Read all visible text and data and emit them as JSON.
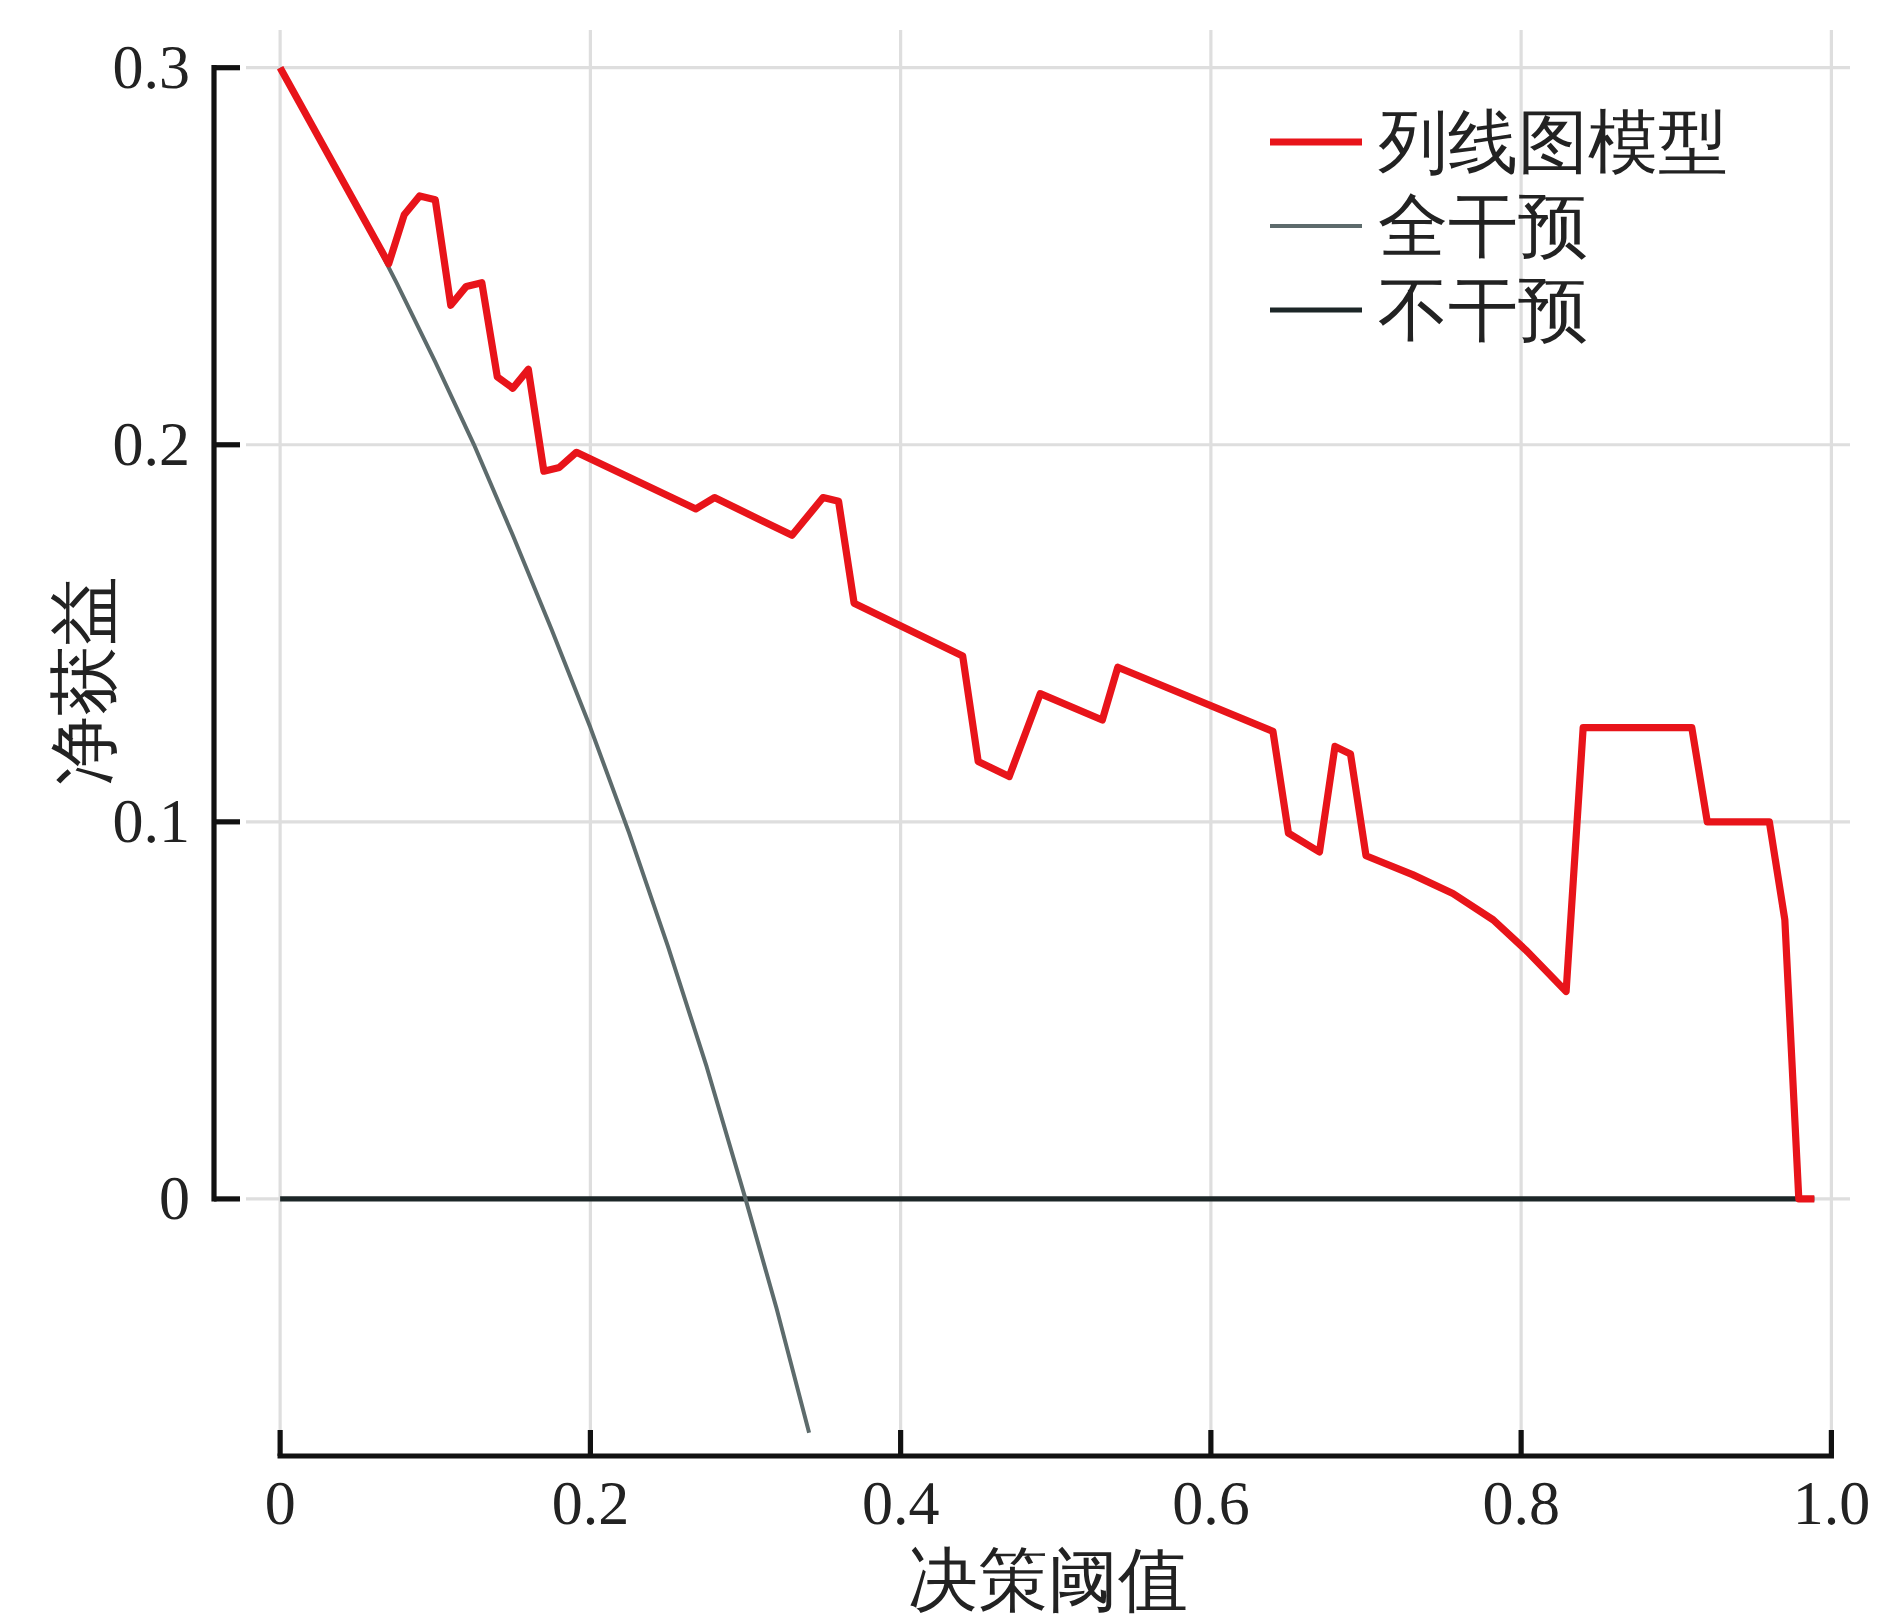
{
  "chart_data": {
    "type": "line",
    "xlabel": "决策阈值",
    "ylabel": "净获益",
    "xlim": [
      -0.022,
      1.012
    ],
    "ylim": [
      -0.065,
      0.31
    ],
    "xticks": [
      0,
      0.2,
      0.4,
      0.6,
      0.8,
      {
        "value": 1,
        "label": "1.0"
      }
    ],
    "yticks": [
      0,
      0.1,
      0.2,
      0.3
    ],
    "grid": true,
    "legend": "top right",
    "series": [
      {
        "name": "列线图模型",
        "color": "#e8141a",
        "x": [
          0,
          0.07,
          0.08,
          0.09,
          0.1,
          0.11,
          0.12,
          0.13,
          0.14,
          0.15,
          0.16,
          0.17,
          0.18,
          0.191,
          0.268,
          0.28,
          0.33,
          0.35,
          0.36,
          0.37,
          0.44,
          0.45,
          0.47,
          0.49,
          0.53,
          0.54,
          0.64,
          0.65,
          0.67,
          0.68,
          0.69,
          0.7,
          0.73,
          0.756,
          0.782,
          0.803,
          0.829,
          0.84,
          0.91,
          0.92,
          0.96,
          0.97,
          0.979,
          0.989
        ],
        "values": [
          0.3,
          0.248,
          0.261,
          0.266,
          0.265,
          0.237,
          0.242,
          0.243,
          0.218,
          0.215,
          0.22,
          0.193,
          0.194,
          0.198,
          0.183,
          0.186,
          0.176,
          0.186,
          0.185,
          0.158,
          0.144,
          0.116,
          0.112,
          0.134,
          0.127,
          0.141,
          0.124,
          0.097,
          0.092,
          0.12,
          0.118,
          0.091,
          0.086,
          0.081,
          0.074,
          0.066,
          0.055,
          0.125,
          0.125,
          0.1,
          0.1,
          0.074,
          0,
          0
        ]
      },
      {
        "name": "全干预",
        "color": "#5d6b6c",
        "x": [
          0,
          0.05,
          0.075,
          0.1,
          0.125,
          0.15,
          0.175,
          0.2,
          0.225,
          0.25,
          0.275,
          0.3,
          0.32,
          0.341
        ],
        "values": [
          0.3,
          0.263,
          0.243,
          0.222,
          0.2,
          0.176,
          0.151,
          0.125,
          0.097,
          0.067,
          0.035,
          0,
          -0.029,
          -0.062
        ]
      },
      {
        "name": "不干预",
        "color": "#1c2627",
        "x": [
          0,
          0.989
        ],
        "values": [
          0,
          0
        ]
      }
    ]
  }
}
